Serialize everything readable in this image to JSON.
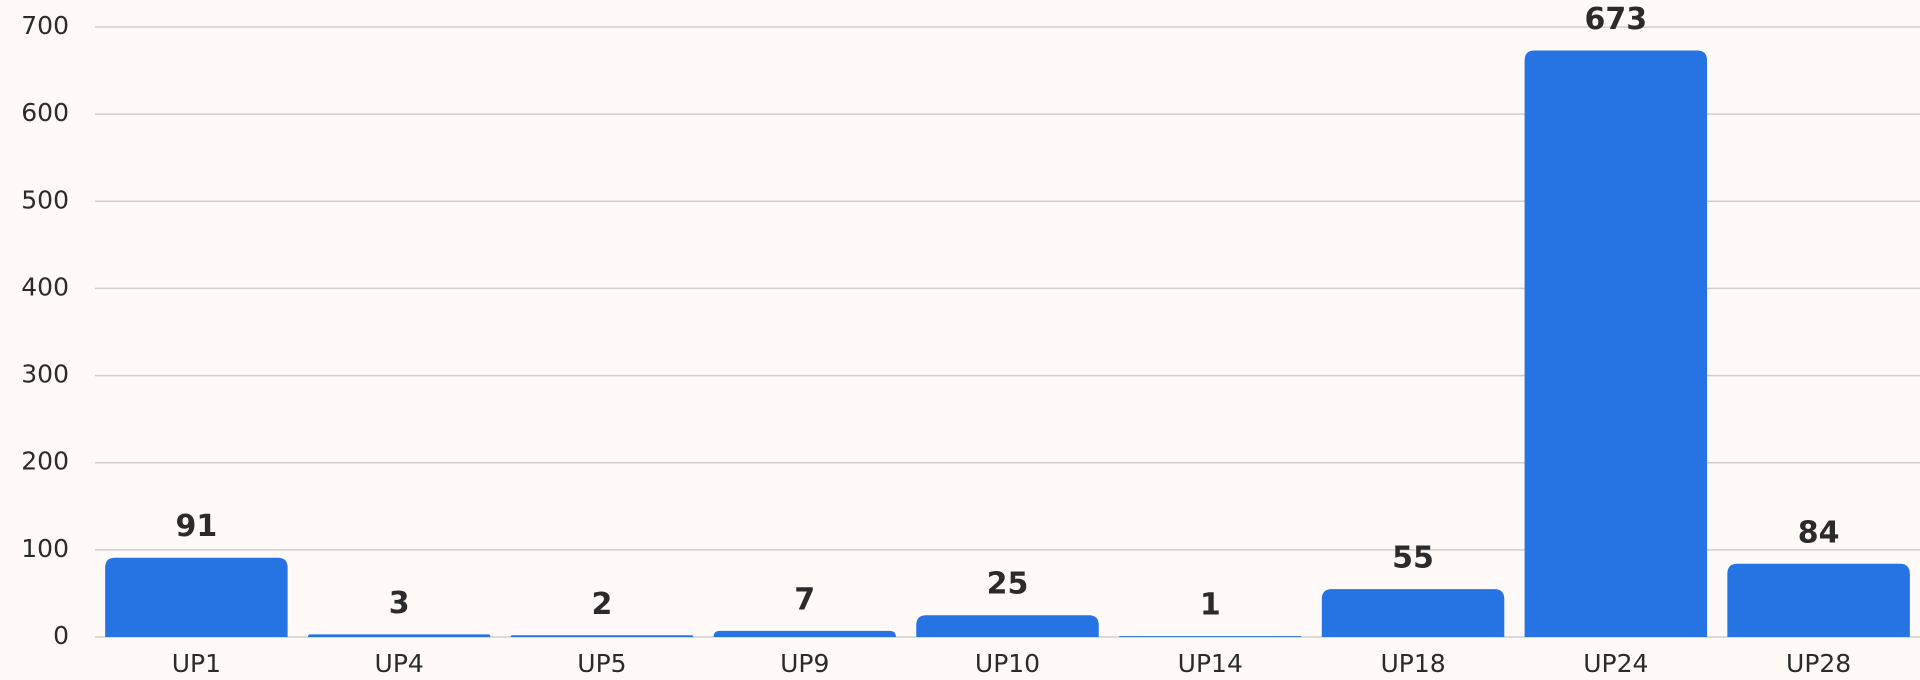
{
  "chart_data": {
    "type": "bar",
    "categories": [
      "UP1",
      "UP4",
      "UP5",
      "UP9",
      "UP10",
      "UP14",
      "UP18",
      "UP24",
      "UP28"
    ],
    "values": [
      91,
      3,
      2,
      7,
      25,
      1,
      55,
      673,
      84
    ],
    "color": "#2673e3",
    "ylim": [
      0,
      700
    ],
    "yticks": [
      0,
      100,
      200,
      300,
      400,
      500,
      600,
      700
    ],
    "grid": true
  }
}
